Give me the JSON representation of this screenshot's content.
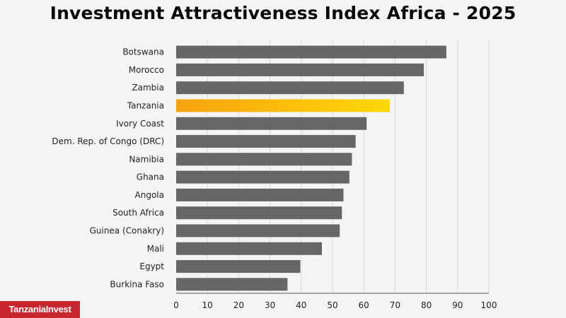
{
  "chart_data": {
    "type": "bar",
    "orientation": "horizontal",
    "title": "Investment Attractiveness Index Africa - 2025",
    "xlabel": "",
    "ylabel": "",
    "xlim": [
      0,
      100
    ],
    "xticks": [
      "0",
      "10",
      "20",
      "30",
      "40",
      "50",
      "60",
      "70",
      "80",
      "90",
      "100"
    ],
    "grid": true,
    "categories": [
      "Botswana",
      "Morocco",
      "Zambia",
      "Tanzania",
      "Ivory Coast",
      "Dem. Rep. of Congo (DRC)",
      "Namibia",
      "Ghana",
      "Angola",
      "South Africa",
      "Guinea (Conakry)",
      "Mali",
      "Egypt",
      "Burkina Faso"
    ],
    "values": [
      86.4,
      79.2,
      72.8,
      68.3,
      60.9,
      57.4,
      56.2,
      55.4,
      53.5,
      53.0,
      52.3,
      46.6,
      39.7,
      35.6
    ],
    "highlight": "Tanzania",
    "colors": {
      "bar": "#666666",
      "highlight_start": "#f7a20f",
      "highlight_end": "#ffd80a",
      "grid": "#d8d8d8",
      "axis": "#555555"
    }
  },
  "logo": {
    "text": "TanzaniaInvest",
    "color": "#c8262e"
  }
}
